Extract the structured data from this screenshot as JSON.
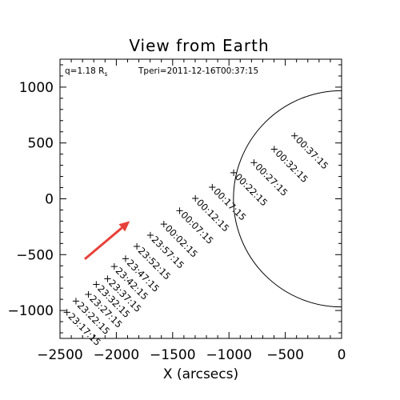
{
  "chart_data": {
    "type": "scatter",
    "title": "View from Earth",
    "xlabel": "X (arcsecs)",
    "ylabel": "",
    "xlim": [
      -2500,
      0
    ],
    "ylim": [
      -1250,
      1250
    ],
    "grid": false,
    "xticks": [
      -2500,
      -2000,
      -1500,
      -1000,
      -500,
      0
    ],
    "xtick_labels": [
      "−2500",
      "−2000",
      "−1500",
      "−1000",
      "−500",
      "0"
    ],
    "yticks": [
      1000,
      500,
      0,
      -500,
      -1000
    ],
    "ytick_labels": [
      "1000",
      "500",
      "0",
      "−500",
      "−1000"
    ],
    "annotation_q_main": "q=1.18 R",
    "annotation_q_sub": "s",
    "annotation_tperi": "Tperi=2011-12-16T00:37:15",
    "circle": {
      "center": [
        0,
        0
      ],
      "radius": 960
    },
    "marker": "×",
    "arrow": {
      "from": [
        -2280,
        -540
      ],
      "to": [
        -1880,
        -200
      ],
      "color": "#e8413a"
    },
    "points": [
      {
        "x": -2440,
        "y": -1010,
        "label": "23:17:15"
      },
      {
        "x": -2360,
        "y": -910,
        "label": "23:22:15"
      },
      {
        "x": -2250,
        "y": -850,
        "label": "23:27:15"
      },
      {
        "x": -2180,
        "y": -760,
        "label": "23:32:15"
      },
      {
        "x": -2080,
        "y": -710,
        "label": "23:37:15"
      },
      {
        "x": -2020,
        "y": -600,
        "label": "23:42:15"
      },
      {
        "x": -1920,
        "y": -530,
        "label": "23:47:15"
      },
      {
        "x": -1820,
        "y": -420,
        "label": "23:52:15"
      },
      {
        "x": -1700,
        "y": -320,
        "label": "23:57:15"
      },
      {
        "x": -1580,
        "y": -220,
        "label": "00:02:15"
      },
      {
        "x": -1440,
        "y": -100,
        "label": "00:07:15"
      },
      {
        "x": -1300,
        "y": 10,
        "label": "00:12:15"
      },
      {
        "x": -1150,
        "y": 110,
        "label": "00:17:15"
      },
      {
        "x": -960,
        "y": 240,
        "label": "00:22:15"
      },
      {
        "x": -780,
        "y": 330,
        "label": "00:27:15"
      },
      {
        "x": -600,
        "y": 450,
        "label": "00:32:15"
      },
      {
        "x": -420,
        "y": 570,
        "label": "00:37:15"
      }
    ]
  }
}
